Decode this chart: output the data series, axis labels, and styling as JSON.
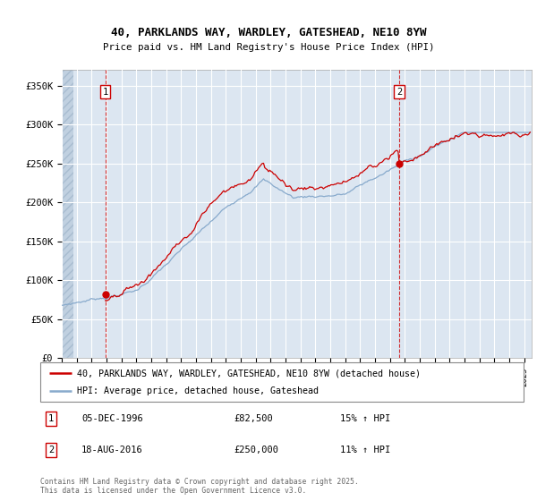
{
  "title1": "40, PARKLANDS WAY, WARDLEY, GATESHEAD, NE10 8YW",
  "title2": "Price paid vs. HM Land Registry's House Price Index (HPI)",
  "ylabel_ticks": [
    "£0",
    "£50K",
    "£100K",
    "£150K",
    "£200K",
    "£250K",
    "£300K",
    "£350K"
  ],
  "ylim": [
    0,
    370000
  ],
  "xlim_start": 1994.0,
  "xlim_end": 2025.5,
  "purchase1_year": 1996.92,
  "purchase1_price": 82500,
  "purchase2_year": 2016.62,
  "purchase2_price": 250000,
  "legend_line1": "40, PARKLANDS WAY, WARDLEY, GATESHEAD, NE10 8YW (detached house)",
  "legend_line2": "HPI: Average price, detached house, Gateshead",
  "ann1_label": "1",
  "ann1_date": "05-DEC-1996",
  "ann1_price": "£82,500",
  "ann1_hpi": "15% ↑ HPI",
  "ann2_label": "2",
  "ann2_date": "18-AUG-2016",
  "ann2_price": "£250,000",
  "ann2_hpi": "11% ↑ HPI",
  "footnote": "Contains HM Land Registry data © Crown copyright and database right 2025.\nThis data is licensed under the Open Government Licence v3.0.",
  "bg_color": "#dce6f1",
  "hatch_color": "#c8d8e8",
  "grid_color": "#ffffff",
  "line_red": "#cc0000",
  "line_blue": "#88aacc"
}
